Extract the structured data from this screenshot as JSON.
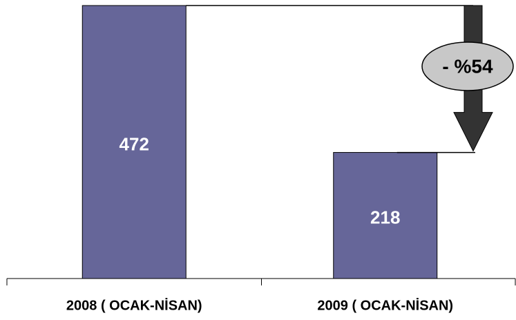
{
  "chart_data": {
    "type": "bar",
    "categories": [
      "2008 ( OCAK-NİSAN)",
      "2009 ( OCAK-NİSAN)"
    ],
    "values": [
      472,
      218
    ],
    "color": "#666699",
    "annotation": "- %54"
  }
}
